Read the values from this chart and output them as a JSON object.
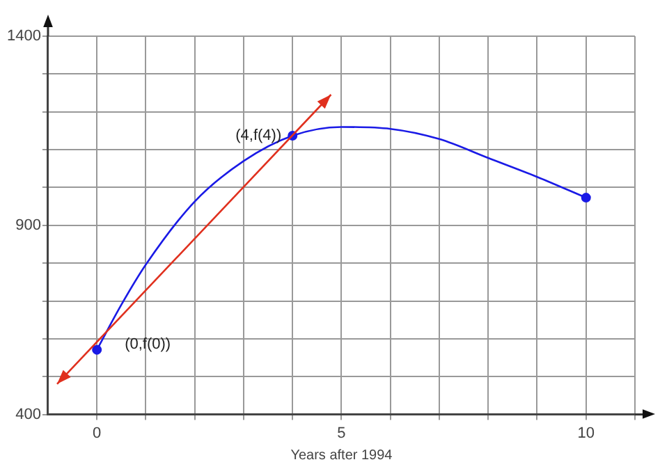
{
  "chart_data": {
    "type": "line",
    "xlabel": "Years after 1994",
    "xlim": [
      -1,
      11
    ],
    "ylim": [
      400,
      1400
    ],
    "xticks": [
      {
        "value": 0,
        "label": "0"
      },
      {
        "value": 1,
        "label": null
      },
      {
        "value": 2,
        "label": null
      },
      {
        "value": 3,
        "label": null
      },
      {
        "value": 4,
        "label": null
      },
      {
        "value": 5,
        "label": "5"
      },
      {
        "value": 6,
        "label": null
      },
      {
        "value": 7,
        "label": null
      },
      {
        "value": 8,
        "label": null
      },
      {
        "value": 9,
        "label": null
      },
      {
        "value": 10,
        "label": "10"
      },
      {
        "value": 11,
        "label": null
      }
    ],
    "yticks": [
      400,
      {
        "value": 500,
        "label": null
      },
      {
        "value": 600,
        "label": null
      },
      {
        "value": 700,
        "label": null
      },
      {
        "value": 800,
        "label": null
      },
      900,
      {
        "value": 1000,
        "label": null
      },
      {
        "value": 1100,
        "label": null
      },
      {
        "value": 1200,
        "label": null
      },
      {
        "value": 1300,
        "label": null
      },
      1400
    ],
    "grid": true,
    "legend": false,
    "series": [
      {
        "color": "#1a1ae6",
        "marker": "none",
        "x": [
          0,
          0.5,
          1,
          2,
          3,
          4,
          5,
          6,
          7,
          8,
          9,
          10
        ],
        "values": [
          571,
          690,
          796,
          963,
          1070,
          1137,
          1160,
          1155,
          1128,
          1078,
          1028,
          973
        ]
      },
      {
        "type": "scatter",
        "color": "#1a1ae6",
        "marker": "circle",
        "x": [
          0,
          4,
          10
        ],
        "values": [
          571,
          1137,
          973
        ]
      }
    ],
    "annotations": [
      {
        "text": "(0,f(0))",
        "x": 0,
        "y": 571
      },
      {
        "text": "(4,f(4))",
        "x": 4,
        "y": 1137
      }
    ]
  }
}
